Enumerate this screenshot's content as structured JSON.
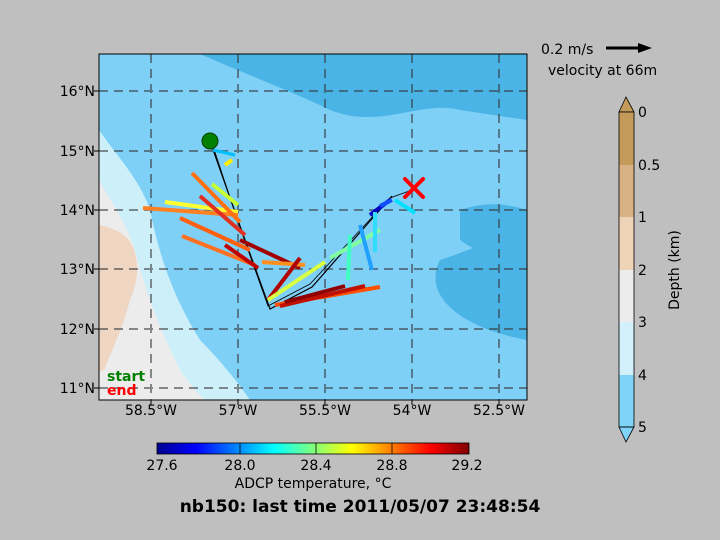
{
  "map": {
    "lon_ticks": [
      "58.5°W",
      "57°W",
      "55.5°W",
      "54°W",
      "52.5°W"
    ],
    "lat_ticks": [
      "16°N",
      "15°N",
      "14°N",
      "13°N",
      "12°N",
      "11°N"
    ],
    "colors": {
      "deep_ocean": "#4bb4e6",
      "mid_ocean": "#7fd0f7",
      "shelf": "#cceff9",
      "shallow": "#ececec",
      "land": "#efd6c2",
      "start_marker": "#007f00",
      "end_marker": "#ff0000"
    }
  },
  "legend": {
    "start": "start",
    "end": "end"
  },
  "velocity_key": {
    "speed": "0.2 m/s",
    "label": "velocity at 66m"
  },
  "depth_colorbar": {
    "title": "Depth (km)",
    "ticks": [
      "0",
      "0.5",
      "1",
      "2",
      "3",
      "4",
      "5"
    ],
    "colors": [
      "#c49a5a",
      "#d8b184",
      "#eed3b7",
      "#ececec",
      "#d2f1fb",
      "#7fd3f7"
    ]
  },
  "temp_colorbar": {
    "label": "ADCP temperature, °C",
    "ticks": [
      "27.6",
      "28.0",
      "28.4",
      "28.8",
      "29.2"
    ],
    "range": [
      27.6,
      29.2
    ]
  },
  "title": "nb150: last time 2011/05/07 23:48:54"
}
